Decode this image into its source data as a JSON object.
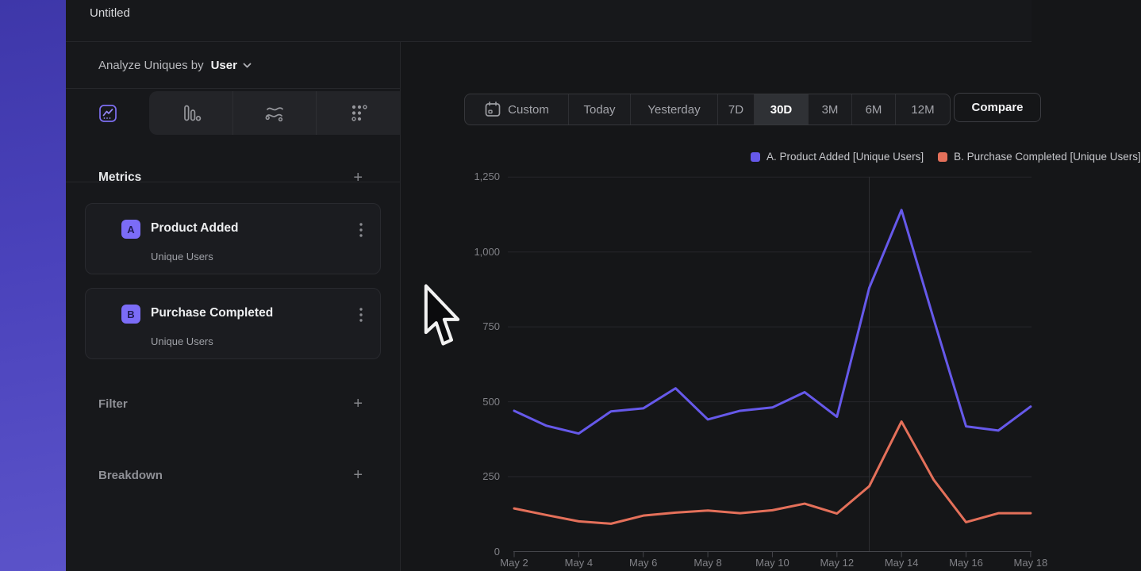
{
  "window": {
    "title": "Untitled"
  },
  "sidebar": {
    "analyze": {
      "label": "Analyze Uniques by",
      "value": "User"
    },
    "chart_type_tabs": [
      "line-chart",
      "bar-chart",
      "flows",
      "funnel-dots"
    ],
    "active_chart_type": "line-chart",
    "metrics": {
      "header": "Metrics",
      "add_label": "+",
      "items": [
        {
          "badge": "A",
          "label": "Product Added",
          "sublabel": "Unique Users"
        },
        {
          "badge": "B",
          "label": "Purchase Completed",
          "sublabel": "Unique Users"
        }
      ]
    },
    "filter": {
      "label": "Filter",
      "add_label": "+"
    },
    "breakdown": {
      "label": "Breakdown",
      "add_label": "+"
    }
  },
  "toolbar": {
    "ranges": [
      "Custom",
      "Today",
      "Yesterday",
      "7D",
      "30D",
      "3M",
      "6M",
      "12M"
    ],
    "selected_range": "30D",
    "compare_label": "Compare"
  },
  "chart_data": {
    "type": "line",
    "x": [
      "May 2",
      "May 3",
      "May 4",
      "May 5",
      "May 6",
      "May 7",
      "May 8",
      "May 9",
      "May 10",
      "May 11",
      "May 12",
      "May 13",
      "May 14",
      "May 15",
      "May 16",
      "May 17",
      "May 18"
    ],
    "x_tick_labels": [
      "May 2",
      "May 4",
      "May 6",
      "May 8",
      "May 10",
      "May 12",
      "May 14",
      "May 16",
      "May 18"
    ],
    "series": [
      {
        "name": "A. Product Added [Unique Users]",
        "color": "#6659ea",
        "values": [
          470,
          420,
          394,
          468,
          478,
          545,
          441,
          470,
          481,
          532,
          450,
          880,
          1140,
          775,
          418,
          404,
          484
        ]
      },
      {
        "name": "B. Purchase Completed [Unique Users]",
        "color": "#e4705a",
        "values": [
          144,
          122,
          101,
          93,
          120,
          130,
          137,
          128,
          138,
          160,
          127,
          218,
          434,
          239,
          98,
          128,
          128
        ]
      }
    ],
    "ylim": [
      0,
      1250
    ],
    "yticks": [
      0,
      250,
      500,
      750,
      1000,
      1250
    ],
    "ytick_labels": [
      "0",
      "250",
      "500",
      "750",
      "1,000",
      "1,250"
    ],
    "grid": "horizontal",
    "vertical_marker_x": "May 13",
    "legend_position": "top-right",
    "colors": {
      "grid": "#26272b",
      "axis": "#45464b",
      "marker": "#2e2f33",
      "tick_text": "#808186"
    }
  }
}
